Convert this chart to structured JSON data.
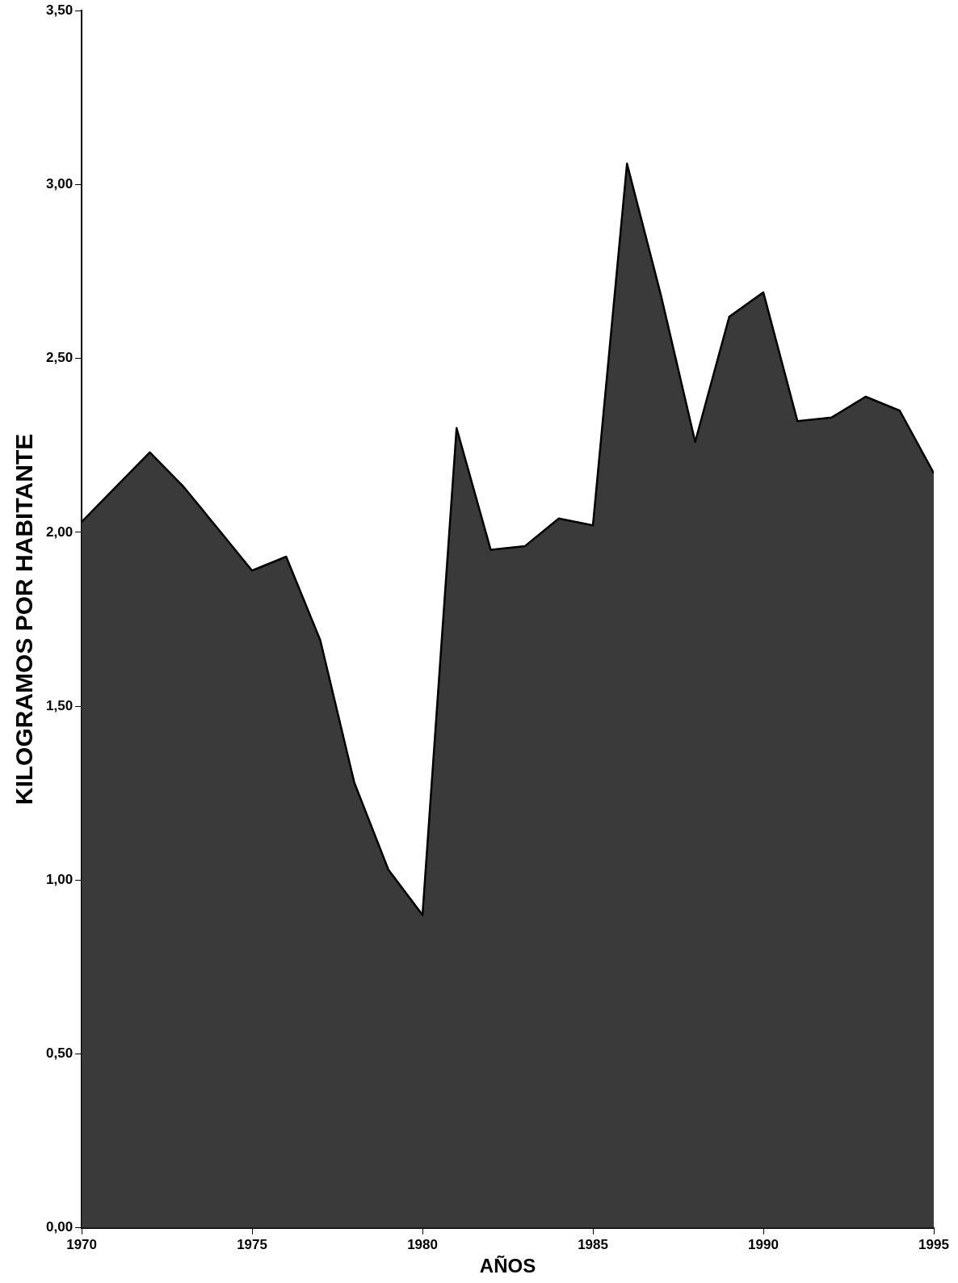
{
  "chart_data": {
    "type": "area",
    "xlabel": "AÑOS",
    "ylabel": "KILOGRAMOS POR HABITANTE",
    "x": [
      1970,
      1971,
      1972,
      1973,
      1974,
      1975,
      1976,
      1977,
      1978,
      1979,
      1980,
      1981,
      1982,
      1983,
      1984,
      1985,
      1986,
      1987,
      1988,
      1989,
      1990,
      1991,
      1992,
      1993,
      1994,
      1995
    ],
    "series": [
      {
        "color": "#3a3a3a",
        "values": [
          2.03,
          2.13,
          2.23,
          2.13,
          2.01,
          1.89,
          1.93,
          1.69,
          1.28,
          1.03,
          0.9,
          2.3,
          1.95,
          1.96,
          2.04,
          2.02,
          3.06,
          2.68,
          2.26,
          2.62,
          2.69,
          2.32,
          2.33,
          2.39,
          2.35,
          2.17
        ]
      }
    ],
    "xlim": [
      1970,
      1995
    ],
    "xticks": [
      1970,
      1975,
      1980,
      1985,
      1990,
      1995
    ],
    "ylim": [
      0,
      3.5
    ],
    "yticks": [
      {
        "value": 0,
        "label": "0,00"
      },
      {
        "value": 0.5,
        "label": "0,50"
      },
      {
        "value": 1,
        "label": "1,00"
      },
      {
        "value": 1.5,
        "label": "1,50"
      },
      {
        "value": 2,
        "label": "2,00"
      },
      {
        "value": 2.5,
        "label": "2,50"
      },
      {
        "value": 3,
        "label": "3,00"
      },
      {
        "value": 3.5,
        "label": "3,50"
      }
    ],
    "grid": false,
    "legend": false,
    "marker": "none",
    "line_style": "solid"
  }
}
